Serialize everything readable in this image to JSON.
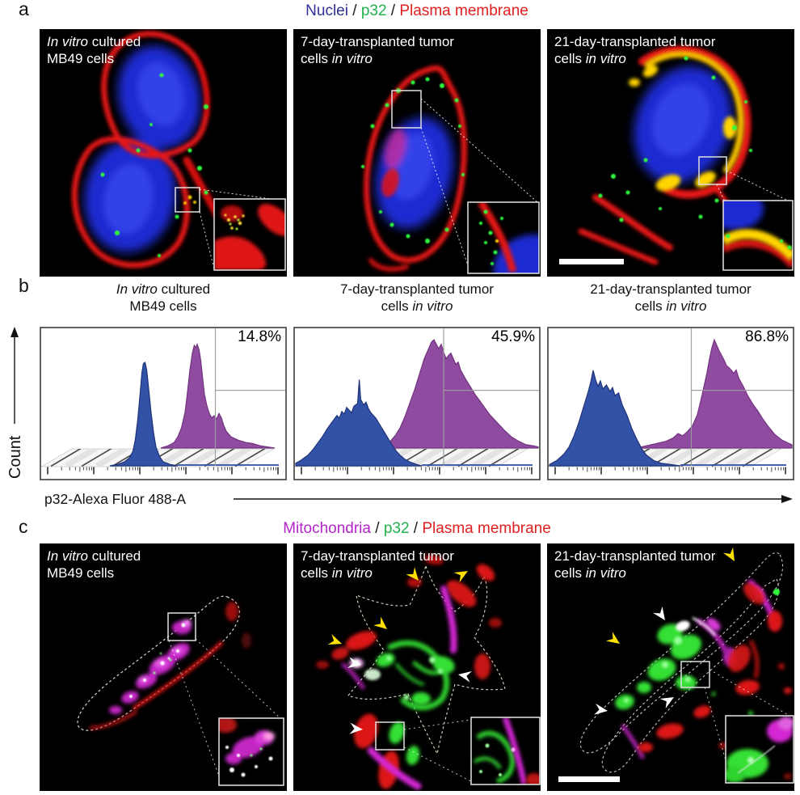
{
  "panels": {
    "a": {
      "label": "a",
      "legend_parts": [
        {
          "text": "Nuclei",
          "color": "#2E3192"
        },
        {
          "text": " / ",
          "color": "#1a1a1a"
        },
        {
          "text": "p32",
          "color": "#22B14C"
        },
        {
          "text": " / ",
          "color": "#1a1a1a"
        },
        {
          "text": "Plasma membrane",
          "color": "#E0201E"
        }
      ],
      "images": [
        {
          "caption_line1": "[[In vitro]] cultured",
          "caption_line2": "MB49 cells",
          "has_scale_bar": false,
          "has_inset": true
        },
        {
          "caption_line1": "7-day-transplanted tumor",
          "caption_line2": "cells [[in vitro]]",
          "has_scale_bar": false,
          "has_inset": true
        },
        {
          "caption_line1": "21-day-transplanted tumor",
          "caption_line2": "cells [[in vitro]]",
          "has_scale_bar": true,
          "has_inset": true
        }
      ]
    },
    "b": {
      "label": "b",
      "xlabel": "p32-Alexa Fluor 488-A",
      "ylabel": "Count",
      "titles": [
        {
          "line1": "[[In vitro]] cultured",
          "line2": "MB49 cells"
        },
        {
          "line1": "7-day-transplanted tumor",
          "line2": "cells [[in vitro]]"
        },
        {
          "line1": "21-day-transplanted tumor",
          "line2": "cells [[in vitro]]"
        }
      ]
    },
    "c": {
      "label": "c",
      "legend_parts": [
        {
          "text": "Mitochondria",
          "color": "#B324C8"
        },
        {
          "text": " / ",
          "color": "#1a1a1a"
        },
        {
          "text": "p32",
          "color": "#22B14C"
        },
        {
          "text": " / ",
          "color": "#1a1a1a"
        },
        {
          "text": "Plasma membrane",
          "color": "#E0201E"
        }
      ],
      "images": [
        {
          "caption_line1": "[[In vitro]] cultured",
          "caption_line2": "MB49 cells",
          "yellow_arrows": 0,
          "white_arrows": 0,
          "has_scale_bar": false
        },
        {
          "caption_line1": "7-day-transplanted tumor",
          "caption_line2": "cells [[in vitro]]",
          "yellow_arrows": 4,
          "white_arrows": 3,
          "has_scale_bar": false
        },
        {
          "caption_line1": "21-day-transplanted tumor",
          "caption_line2": "cells [[in vitro]]",
          "yellow_arrows": 2,
          "white_arrows": 3,
          "has_scale_bar": true
        }
      ]
    }
  },
  "chart_data": [
    {
      "type": "histogram-overlay",
      "title": "In vitro cultured MB49 cells",
      "percent": "14.8%",
      "xlabel": "p32-Alexa Fluor 488-A",
      "ylabel": "Count",
      "xscale": "log (unlabeled ticks)",
      "grid": false,
      "gate": {
        "x": 0.715,
        "y": 0.414
      },
      "series": [
        {
          "name": "blue",
          "color": "#3252A8",
          "edge": "#1F3377",
          "points": [
            [
              0.28,
              0.0
            ],
            [
              0.31,
              0.01
            ],
            [
              0.34,
              0.03
            ],
            [
              0.36,
              0.06
            ],
            [
              0.375,
              0.11
            ],
            [
              0.385,
              0.2
            ],
            [
              0.395,
              0.35
            ],
            [
              0.405,
              0.55
            ],
            [
              0.412,
              0.7
            ],
            [
              0.418,
              0.77
            ],
            [
              0.425,
              0.78
            ],
            [
              0.432,
              0.72
            ],
            [
              0.44,
              0.58
            ],
            [
              0.45,
              0.4
            ],
            [
              0.46,
              0.25
            ],
            [
              0.47,
              0.14
            ],
            [
              0.485,
              0.07
            ],
            [
              0.5,
              0.03
            ],
            [
              0.53,
              0.01
            ],
            [
              0.56,
              0.0
            ]
          ]
        },
        {
          "name": "purple",
          "color": "#8F4B9F",
          "edge": "#73357F",
          "points": [
            [
              0.49,
              0.0
            ],
            [
              0.52,
              0.02
            ],
            [
              0.545,
              0.05
            ],
            [
              0.56,
              0.1
            ],
            [
              0.575,
              0.18
            ],
            [
              0.59,
              0.32
            ],
            [
              0.6,
              0.5
            ],
            [
              0.61,
              0.7
            ],
            [
              0.62,
              0.85
            ],
            [
              0.628,
              0.92
            ],
            [
              0.635,
              0.9
            ],
            [
              0.64,
              0.93
            ],
            [
              0.648,
              0.88
            ],
            [
              0.655,
              0.78
            ],
            [
              0.663,
              0.62
            ],
            [
              0.67,
              0.48
            ],
            [
              0.68,
              0.38
            ],
            [
              0.69,
              0.31
            ],
            [
              0.7,
              0.27
            ],
            [
              0.71,
              0.29
            ],
            [
              0.72,
              0.26
            ],
            [
              0.73,
              0.31
            ],
            [
              0.74,
              0.27
            ],
            [
              0.75,
              0.2
            ],
            [
              0.76,
              0.15
            ],
            [
              0.78,
              0.1
            ],
            [
              0.81,
              0.07
            ],
            [
              0.84,
              0.05
            ],
            [
              0.87,
              0.04
            ],
            [
              0.9,
              0.02
            ],
            [
              0.93,
              0.01
            ],
            [
              0.96,
              0.0
            ]
          ]
        }
      ]
    },
    {
      "type": "histogram-overlay",
      "title": "7-day-transplanted tumor cells in vitro",
      "percent": "45.9%",
      "xlabel": "p32-Alexa Fluor 488-A",
      "ylabel": "Count",
      "xscale": "log (unlabeled ticks)",
      "grid": false,
      "gate": {
        "x": 0.61,
        "y": 0.414
      },
      "series": [
        {
          "name": "blue",
          "color": "#3252A8",
          "edge": "#1F3377",
          "points": [
            [
              0.0,
              0.02
            ],
            [
              0.02,
              0.04
            ],
            [
              0.05,
              0.08
            ],
            [
              0.07,
              0.12
            ],
            [
              0.09,
              0.17
            ],
            [
              0.11,
              0.22
            ],
            [
              0.13,
              0.28
            ],
            [
              0.15,
              0.33
            ],
            [
              0.17,
              0.38
            ],
            [
              0.18,
              0.36
            ],
            [
              0.19,
              0.41
            ],
            [
              0.2,
              0.39
            ],
            [
              0.21,
              0.44
            ],
            [
              0.22,
              0.42
            ],
            [
              0.23,
              0.4
            ],
            [
              0.24,
              0.45
            ],
            [
              0.255,
              0.47
            ],
            [
              0.262,
              0.65
            ],
            [
              0.268,
              0.5
            ],
            [
              0.28,
              0.46
            ],
            [
              0.29,
              0.48
            ],
            [
              0.3,
              0.43
            ],
            [
              0.31,
              0.4
            ],
            [
              0.33,
              0.36
            ],
            [
              0.35,
              0.3
            ],
            [
              0.37,
              0.24
            ],
            [
              0.39,
              0.18
            ],
            [
              0.41,
              0.12
            ],
            [
              0.43,
              0.08
            ],
            [
              0.45,
              0.05
            ],
            [
              0.47,
              0.03
            ],
            [
              0.5,
              0.01
            ],
            [
              0.52,
              0.0
            ]
          ]
        },
        {
          "name": "purple",
          "color": "#8F4B9F",
          "edge": "#73357F",
          "points": [
            [
              0.34,
              0.0
            ],
            [
              0.37,
              0.03
            ],
            [
              0.39,
              0.06
            ],
            [
              0.41,
              0.11
            ],
            [
              0.43,
              0.18
            ],
            [
              0.45,
              0.28
            ],
            [
              0.47,
              0.4
            ],
            [
              0.49,
              0.52
            ],
            [
              0.51,
              0.66
            ],
            [
              0.53,
              0.8
            ],
            [
              0.55,
              0.9
            ],
            [
              0.56,
              0.95
            ],
            [
              0.57,
              0.97
            ],
            [
              0.58,
              0.93
            ],
            [
              0.59,
              0.89
            ],
            [
              0.6,
              0.93
            ],
            [
              0.61,
              0.86
            ],
            [
              0.62,
              0.8
            ],
            [
              0.63,
              0.83
            ],
            [
              0.64,
              0.85
            ],
            [
              0.65,
              0.8
            ],
            [
              0.66,
              0.75
            ],
            [
              0.67,
              0.77
            ],
            [
              0.68,
              0.7
            ],
            [
              0.7,
              0.62
            ],
            [
              0.72,
              0.55
            ],
            [
              0.74,
              0.48
            ],
            [
              0.76,
              0.42
            ],
            [
              0.78,
              0.36
            ],
            [
              0.8,
              0.3
            ],
            [
              0.83,
              0.23
            ],
            [
              0.86,
              0.16
            ],
            [
              0.89,
              0.1
            ],
            [
              0.92,
              0.06
            ],
            [
              0.95,
              0.03
            ],
            [
              0.98,
              0.02
            ],
            [
              1.0,
              0.01
            ]
          ]
        }
      ]
    },
    {
      "type": "histogram-overlay",
      "title": "21-day-transplanted tumor cells in vitro",
      "percent": "86.8%",
      "xlabel": "p32-Alexa Fluor 488-A",
      "ylabel": "Count",
      "xscale": "log (unlabeled ticks)",
      "grid": false,
      "gate": {
        "x": 0.585,
        "y": 0.414
      },
      "series": [
        {
          "name": "blue",
          "color": "#3252A8",
          "edge": "#1F3377",
          "points": [
            [
              0.0,
              0.01
            ],
            [
              0.03,
              0.04
            ],
            [
              0.06,
              0.09
            ],
            [
              0.08,
              0.14
            ],
            [
              0.1,
              0.22
            ],
            [
              0.12,
              0.32
            ],
            [
              0.14,
              0.44
            ],
            [
              0.16,
              0.56
            ],
            [
              0.17,
              0.63
            ],
            [
              0.18,
              0.72
            ],
            [
              0.19,
              0.65
            ],
            [
              0.2,
              0.6
            ],
            [
              0.21,
              0.64
            ],
            [
              0.22,
              0.58
            ],
            [
              0.235,
              0.61
            ],
            [
              0.25,
              0.56
            ],
            [
              0.26,
              0.59
            ],
            [
              0.27,
              0.53
            ],
            [
              0.285,
              0.55
            ],
            [
              0.3,
              0.46
            ],
            [
              0.32,
              0.38
            ],
            [
              0.34,
              0.28
            ],
            [
              0.36,
              0.2
            ],
            [
              0.38,
              0.13
            ],
            [
              0.4,
              0.08
            ],
            [
              0.43,
              0.04
            ],
            [
              0.46,
              0.02
            ],
            [
              0.5,
              0.01
            ],
            [
              0.54,
              0.0
            ]
          ]
        },
        {
          "name": "purple",
          "color": "#8F4B9F",
          "edge": "#73357F",
          "points": [
            [
              0.36,
              0.0
            ],
            [
              0.4,
              0.02
            ],
            [
              0.44,
              0.04
            ],
            [
              0.48,
              0.06
            ],
            [
              0.51,
              0.09
            ],
            [
              0.53,
              0.13
            ],
            [
              0.55,
              0.11
            ],
            [
              0.57,
              0.15
            ],
            [
              0.59,
              0.2
            ],
            [
              0.61,
              0.3
            ],
            [
              0.63,
              0.48
            ],
            [
              0.65,
              0.68
            ],
            [
              0.66,
              0.8
            ],
            [
              0.67,
              0.9
            ],
            [
              0.68,
              0.97
            ],
            [
              0.69,
              0.92
            ],
            [
              0.7,
              0.87
            ],
            [
              0.71,
              0.83
            ],
            [
              0.72,
              0.79
            ],
            [
              0.73,
              0.74
            ],
            [
              0.745,
              0.71
            ],
            [
              0.76,
              0.67
            ],
            [
              0.77,
              0.7
            ],
            [
              0.78,
              0.63
            ],
            [
              0.8,
              0.55
            ],
            [
              0.82,
              0.46
            ],
            [
              0.84,
              0.39
            ],
            [
              0.86,
              0.33
            ],
            [
              0.88,
              0.26
            ],
            [
              0.9,
              0.2
            ],
            [
              0.93,
              0.12
            ],
            [
              0.96,
              0.07
            ],
            [
              0.99,
              0.04
            ],
            [
              1.0,
              0.03
            ]
          ]
        }
      ]
    }
  ]
}
